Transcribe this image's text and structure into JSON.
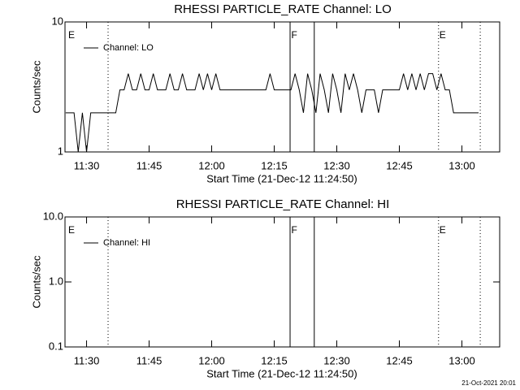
{
  "chart_data": [
    {
      "type": "line",
      "title": "RHESSI PARTICLE_RATE Channel: LO",
      "xlabel": "Start Time (21-Dec-12 11:24:50)",
      "ylabel": "Counts/sec",
      "log_y": true,
      "legend": "upper left",
      "x": [
        685,
        686,
        687,
        688,
        689,
        690,
        691,
        692,
        693,
        694,
        695,
        696,
        697,
        698,
        699,
        700,
        701,
        702,
        703,
        704,
        705,
        706,
        707,
        708,
        709,
        710,
        711,
        712,
        713,
        714,
        715,
        716,
        717,
        718,
        719,
        720,
        721,
        722,
        723,
        724,
        725,
        726,
        727,
        728,
        729,
        730,
        731,
        732,
        733,
        734,
        735,
        736,
        737,
        738,
        739,
        740,
        741,
        742,
        743,
        744,
        745,
        746,
        747,
        748,
        749,
        750,
        751,
        752,
        753,
        754,
        755,
        756,
        757,
        758,
        759,
        760,
        761,
        762,
        763,
        764,
        765,
        766,
        767,
        768,
        769,
        770,
        771,
        772,
        773,
        774,
        775,
        776,
        777,
        778,
        779,
        780,
        781,
        782,
        783,
        784
      ],
      "series": [
        {
          "name": "Channel: LO",
          "color": "#000000",
          "values": [
            2,
            2,
            2,
            1,
            2,
            1,
            2,
            2,
            2,
            2,
            2,
            2,
            2,
            3,
            3,
            4,
            3,
            3,
            4,
            3,
            3,
            4,
            3,
            3,
            3,
            4,
            3,
            3,
            4,
            3,
            3,
            3,
            4,
            3,
            4,
            3,
            4,
            3,
            3,
            3,
            3,
            3,
            3,
            3,
            3,
            3,
            3,
            3,
            3,
            4,
            3,
            3,
            3,
            3,
            3,
            4,
            3,
            2,
            4,
            3,
            2,
            4,
            3,
            2,
            4,
            3,
            2,
            4,
            3,
            4,
            3,
            2,
            3,
            3,
            3,
            2,
            3,
            3,
            3,
            3,
            3,
            4,
            3,
            4,
            3,
            4,
            3,
            4,
            4,
            3,
            4,
            3,
            3,
            2,
            2,
            2,
            2,
            2,
            2,
            2
          ]
        }
      ],
      "xlim": [
        684.83,
        789.06
      ],
      "xticks": [
        {
          "value": 690,
          "label": "11:30"
        },
        {
          "value": 705,
          "label": "11:45"
        },
        {
          "value": 720,
          "label": "12:00"
        },
        {
          "value": 735,
          "label": "12:15"
        },
        {
          "value": 750,
          "label": "12:30"
        },
        {
          "value": 765,
          "label": "12:45"
        },
        {
          "value": 780,
          "label": "13:00"
        }
      ],
      "ylim": [
        1,
        10
      ],
      "yticks": [
        1,
        10
      ],
      "event_lines": [
        {
          "x": 695.16,
          "style": "dotted"
        },
        {
          "x": 738.8,
          "style": "solid"
        },
        {
          "x": 744.6,
          "style": "solid"
        },
        {
          "x": 774.4,
          "style": "dotted"
        },
        {
          "x": 784.4,
          "style": "dotted"
        }
      ],
      "event_labels": [
        {
          "x": 685.6,
          "text": "E"
        },
        {
          "x": 739.1,
          "text": "F"
        },
        {
          "x": 774.6,
          "text": "E"
        }
      ]
    },
    {
      "type": "line",
      "title": "RHESSI PARTICLE_RATE Channel: HI",
      "xlabel": "Start Time (21-Dec-12 11:24:50)",
      "ylabel": "Counts/sec",
      "log_y": true,
      "legend": "upper left",
      "x": [],
      "series": [
        {
          "name": "Channel: HI",
          "color": "#000000",
          "values": []
        }
      ],
      "xlim": [
        684.83,
        789.06
      ],
      "xticks": [
        {
          "value": 690,
          "label": "11:30"
        },
        {
          "value": 705,
          "label": "11:45"
        },
        {
          "value": 720,
          "label": "12:00"
        },
        {
          "value": 735,
          "label": "12:15"
        },
        {
          "value": 750,
          "label": "12:30"
        },
        {
          "value": 765,
          "label": "12:45"
        },
        {
          "value": 780,
          "label": "13:00"
        }
      ],
      "ylim": [
        0.1,
        10
      ],
      "yticks": [
        {
          "value": 0.1,
          "label": "0.1"
        },
        {
          "value": 1,
          "label": "1.0"
        },
        {
          "value": 10,
          "label": "10.0"
        }
      ],
      "event_lines": [
        {
          "x": 695.16,
          "style": "dotted"
        },
        {
          "x": 738.8,
          "style": "solid"
        },
        {
          "x": 744.6,
          "style": "solid"
        },
        {
          "x": 774.4,
          "style": "dotted"
        },
        {
          "x": 784.4,
          "style": "dotted"
        }
      ],
      "event_labels": [
        {
          "x": 685.6,
          "text": "E"
        },
        {
          "x": 739.1,
          "text": "F"
        },
        {
          "x": 774.6,
          "text": "E"
        }
      ]
    }
  ],
  "footer": "21-Oct-2021 20:01"
}
